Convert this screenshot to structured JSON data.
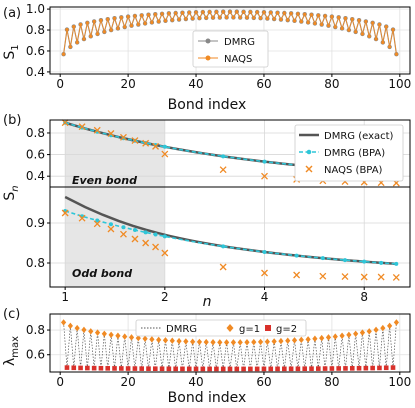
{
  "chart_data": [
    {
      "panel_label": "(a)",
      "type": "line",
      "xlabel": "Bond index",
      "ylabel": "S_1",
      "xlim": [
        -3,
        103
      ],
      "ylim": [
        0.38,
        1.02
      ],
      "xticks": [
        "0",
        "20",
        "40",
        "60",
        "80",
        "100"
      ],
      "yticks": [
        "0.4",
        "0.6",
        "0.8",
        "1.0"
      ],
      "grid": true,
      "legend_position": "center",
      "x_range": [
        1,
        99
      ],
      "series": [
        {
          "name": "DMRG",
          "color": "#888888",
          "marker": "circle",
          "style": "solid",
          "even_bond_edge": 0.7,
          "even_bond_center": 0.975,
          "odd_bond_edge": 0.42,
          "odd_bond_center": 0.92
        },
        {
          "name": "NAQS",
          "color": "#f08a24",
          "marker": "circle",
          "style": "solid",
          "even_bond_edge": 0.7,
          "even_bond_center": 0.975,
          "odd_bond_edge": 0.42,
          "odd_bond_center": 0.92
        }
      ]
    },
    {
      "panel_label": "(b)",
      "type": "line",
      "xlabel": "n",
      "ylabel": "S_n",
      "xticks": [
        "1",
        "2",
        "4",
        "8"
      ],
      "xlim": [
        0.9,
        11
      ],
      "shaded_region": [
        1,
        2
      ],
      "grid": true,
      "legend_position": "top-right",
      "legend": [
        {
          "name": "DMRG (exact)",
          "color": "#555555",
          "style": "solid-thick"
        },
        {
          "name": "DMRG (BPA)",
          "color": "#2fc6d8",
          "style": "dashed"
        },
        {
          "name": "NAQS (BPA)",
          "color": "#f08a24",
          "style": "x-marker"
        }
      ],
      "subplots": [
        {
          "annotation": "Even bond",
          "ylim": [
            0.3,
            0.92
          ],
          "yticks": [
            "0.4",
            "0.6",
            "0.8"
          ],
          "curve_params": {
            "inf": 0.315,
            "a": 0.58,
            "k": 0.7
          },
          "naqs_points": {
            "n": [
              1,
              1.125,
              1.25,
              1.375,
              1.5,
              1.625,
              1.75,
              1.875,
              2,
              3,
              4,
              5,
              6,
              7,
              8,
              9,
              10
            ],
            "values": [
              0.895,
              0.858,
              0.825,
              0.795,
              0.76,
              0.73,
              0.705,
              0.676,
              0.605,
              0.46,
              0.4,
              0.37,
              0.357,
              0.35,
              0.345,
              0.34,
              0.337
            ]
          }
        },
        {
          "annotation": "Odd bond",
          "ylim": [
            0.74,
            0.99
          ],
          "yticks": [
            "0.8",
            "0.9"
          ],
          "curve_params": {
            "inf": 0.765,
            "a": 0.165,
            "k": 0.7
          },
          "exact_start": 0.965,
          "naqs_points": {
            "n": [
              1,
              1.125,
              1.25,
              1.375,
              1.5,
              1.625,
              1.75,
              1.875,
              2,
              3,
              4,
              5,
              6,
              7,
              8,
              9,
              10
            ],
            "values": [
              0.925,
              0.912,
              0.898,
              0.885,
              0.872,
              0.86,
              0.85,
              0.84,
              0.825,
              0.79,
              0.775,
              0.77,
              0.767,
              0.766,
              0.765,
              0.765,
              0.764
            ]
          }
        }
      ]
    },
    {
      "panel_label": "(c)",
      "type": "line",
      "xlabel": "Bond index",
      "ylabel": "λ_max",
      "xlim": [
        -3,
        103
      ],
      "ylim": [
        0.46,
        0.93
      ],
      "xticks": [
        "0",
        "20",
        "40",
        "60",
        "80",
        "100"
      ],
      "yticks": [
        "0.6",
        "0.8"
      ],
      "grid": true,
      "legend_position": "top",
      "x_range": [
        1,
        99
      ],
      "series": [
        {
          "name": "DMRG",
          "color": "#555555",
          "style": "dotted"
        },
        {
          "name": "g=1",
          "color": "#f08a24",
          "marker": "diamond",
          "value_edge": 0.905,
          "value_center": 0.7,
          "bonds": "odd"
        },
        {
          "name": "g=2",
          "color": "#d9312b",
          "marker": "square",
          "value_edge": 0.5,
          "value_center": 0.485,
          "bonds": "even"
        }
      ]
    }
  ]
}
